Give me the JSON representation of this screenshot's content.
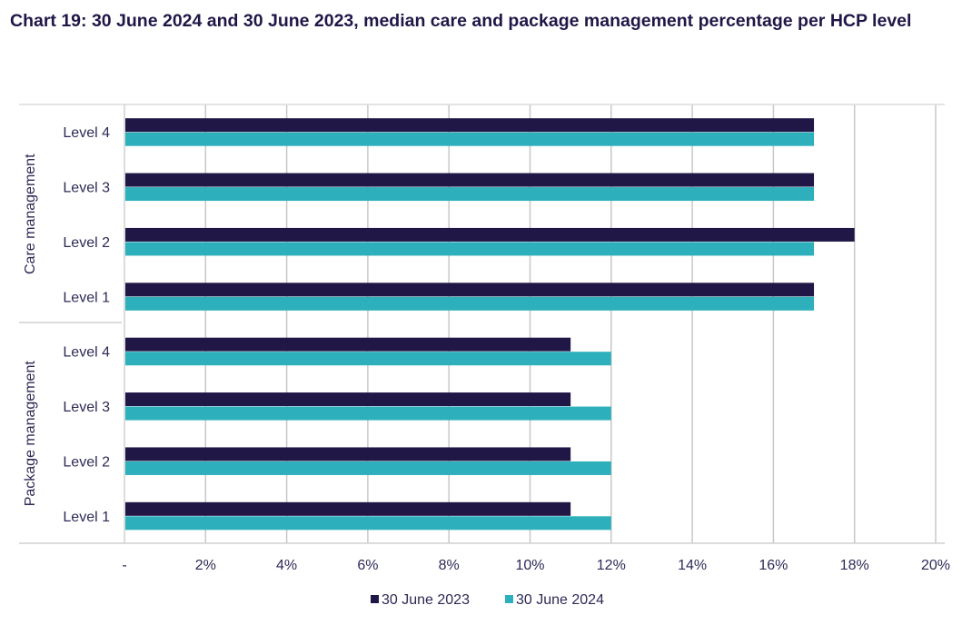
{
  "chart_data": {
    "type": "bar",
    "orientation": "horizontal",
    "title": "Chart 19: 30 June 2024 and 30 June 2023, median care and package management percentage per HCP level",
    "groups": [
      {
        "name": "Care management",
        "categories": [
          "Level 4",
          "Level 3",
          "Level 2",
          "Level 1"
        ]
      },
      {
        "name": "Package management",
        "categories": [
          "Level 4",
          "Level 3",
          "Level 2",
          "Level 1"
        ]
      }
    ],
    "series": [
      {
        "name": "30 June 2023",
        "color": "#211747",
        "values": [
          17,
          17,
          18,
          17,
          11,
          11,
          11,
          11
        ]
      },
      {
        "name": "30 June 2024",
        "color": "#2db0bb",
        "values": [
          17,
          17,
          17,
          17,
          12,
          12,
          12,
          12
        ]
      }
    ],
    "xlim": [
      0,
      20
    ],
    "xticks": [
      0,
      2,
      4,
      6,
      8,
      10,
      12,
      14,
      16,
      18,
      20
    ],
    "xtick_labels": [
      "-",
      "2%",
      "4%",
      "6%",
      "8%",
      "10%",
      "12%",
      "14%",
      "16%",
      "18%",
      "20%"
    ],
    "xlabel": "",
    "ylabel": "",
    "grid": "vertical",
    "legend": "bottom"
  }
}
